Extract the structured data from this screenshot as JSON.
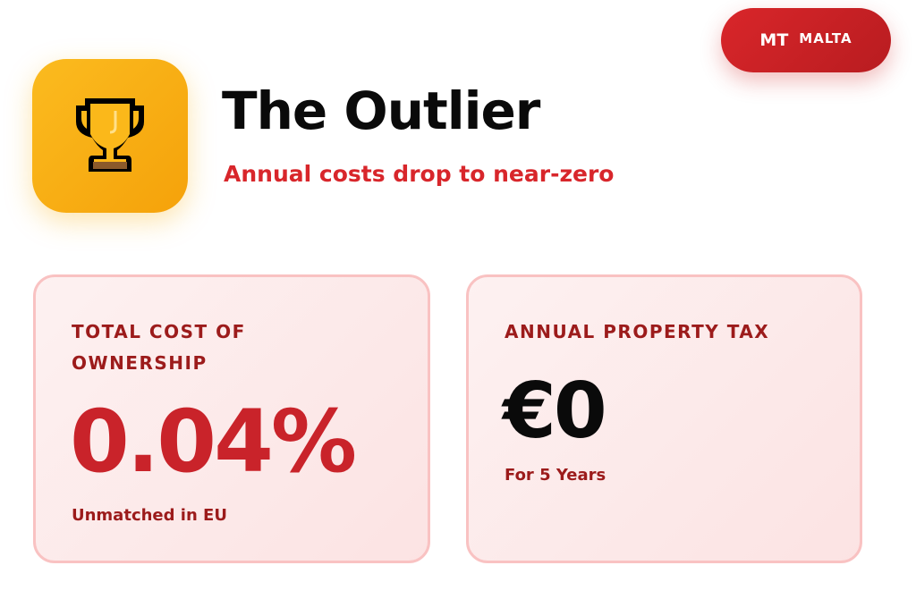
{
  "country_badge": {
    "code": "MT",
    "name": "MALTA",
    "color": "#d0232a"
  },
  "header": {
    "icon": "trophy-icon",
    "title": "The Outlier",
    "subtitle": "Annual costs drop to near-zero"
  },
  "cards": [
    {
      "label_line1": "TOTAL COST OF",
      "label_line2": "OWNERSHIP",
      "value": "0.04%",
      "note": "Unmatched in EU"
    },
    {
      "label_line1": "ANNUAL PROPERTY TAX",
      "value": "€0",
      "note": "For 5 Years"
    }
  ]
}
